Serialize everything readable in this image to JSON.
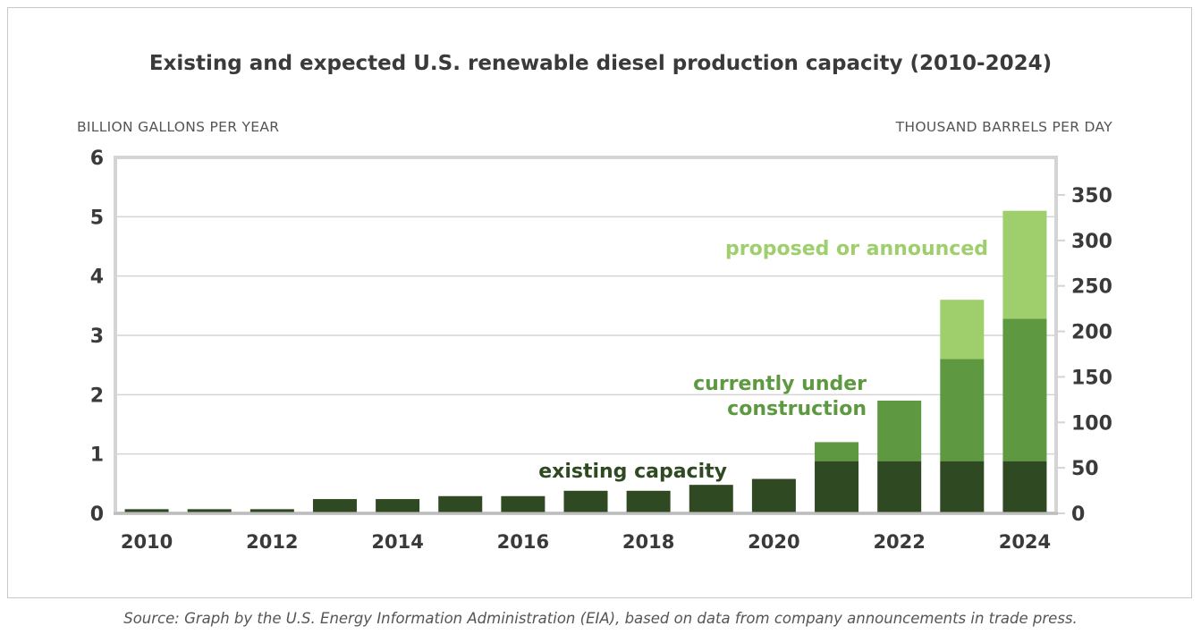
{
  "title": "Existing and expected U.S. renewable diesel production capacity (2010-2024)",
  "source": "Source: Graph by the U.S. Energy Information Administration (EIA), based on data from company announcements in trade press.",
  "colors": {
    "existing": "#2f4a22",
    "construction": "#5e9942",
    "proposed": "#9ecf6c",
    "existing_label": "#2f4a22",
    "construction_label": "#5e9942",
    "proposed_label": "#9ecf6c",
    "grid": "#d4d4d4",
    "axis_text": "#3a3a3a"
  },
  "chart_data": {
    "type": "bar",
    "stacked": true,
    "categories": [
      "2010",
      "2011",
      "2012",
      "2013",
      "2014",
      "2015",
      "2016",
      "2017",
      "2018",
      "2019",
      "2020",
      "2021",
      "2022",
      "2023",
      "2024"
    ],
    "x_tick_labels": [
      "2010",
      "2012",
      "2014",
      "2016",
      "2018",
      "2020",
      "2022",
      "2024"
    ],
    "series": [
      {
        "key": "existing",
        "name": "existing capacity",
        "values": [
          0.07,
          0.07,
          0.07,
          0.24,
          0.24,
          0.29,
          0.29,
          0.38,
          0.38,
          0.48,
          0.58,
          0.88,
          0.88,
          0.88,
          0.88
        ]
      },
      {
        "key": "construction",
        "name": "currently under construction",
        "values": [
          0,
          0,
          0,
          0,
          0,
          0,
          0,
          0,
          0,
          0,
          0,
          0.32,
          1.02,
          1.72,
          2.4
        ]
      },
      {
        "key": "proposed",
        "name": "proposed or announced",
        "values": [
          0,
          0,
          0,
          0,
          0,
          0,
          0,
          0,
          0,
          0,
          0,
          0,
          0,
          1.0,
          1.82
        ]
      }
    ],
    "series_labels": {
      "existing": [
        "existing capacity"
      ],
      "construction": [
        "currently under",
        "construction"
      ],
      "proposed": [
        "proposed or announced"
      ]
    },
    "ylabel": "BILLION GALLONS PER YEAR",
    "y2label": "THOUSAND BARRELS PER DAY",
    "ylim": [
      0,
      6
    ],
    "yticks": [
      0,
      1,
      2,
      3,
      4,
      5,
      6
    ],
    "y2ticks": [
      0,
      50,
      100,
      150,
      200,
      250,
      300,
      350
    ],
    "grid": true
  }
}
